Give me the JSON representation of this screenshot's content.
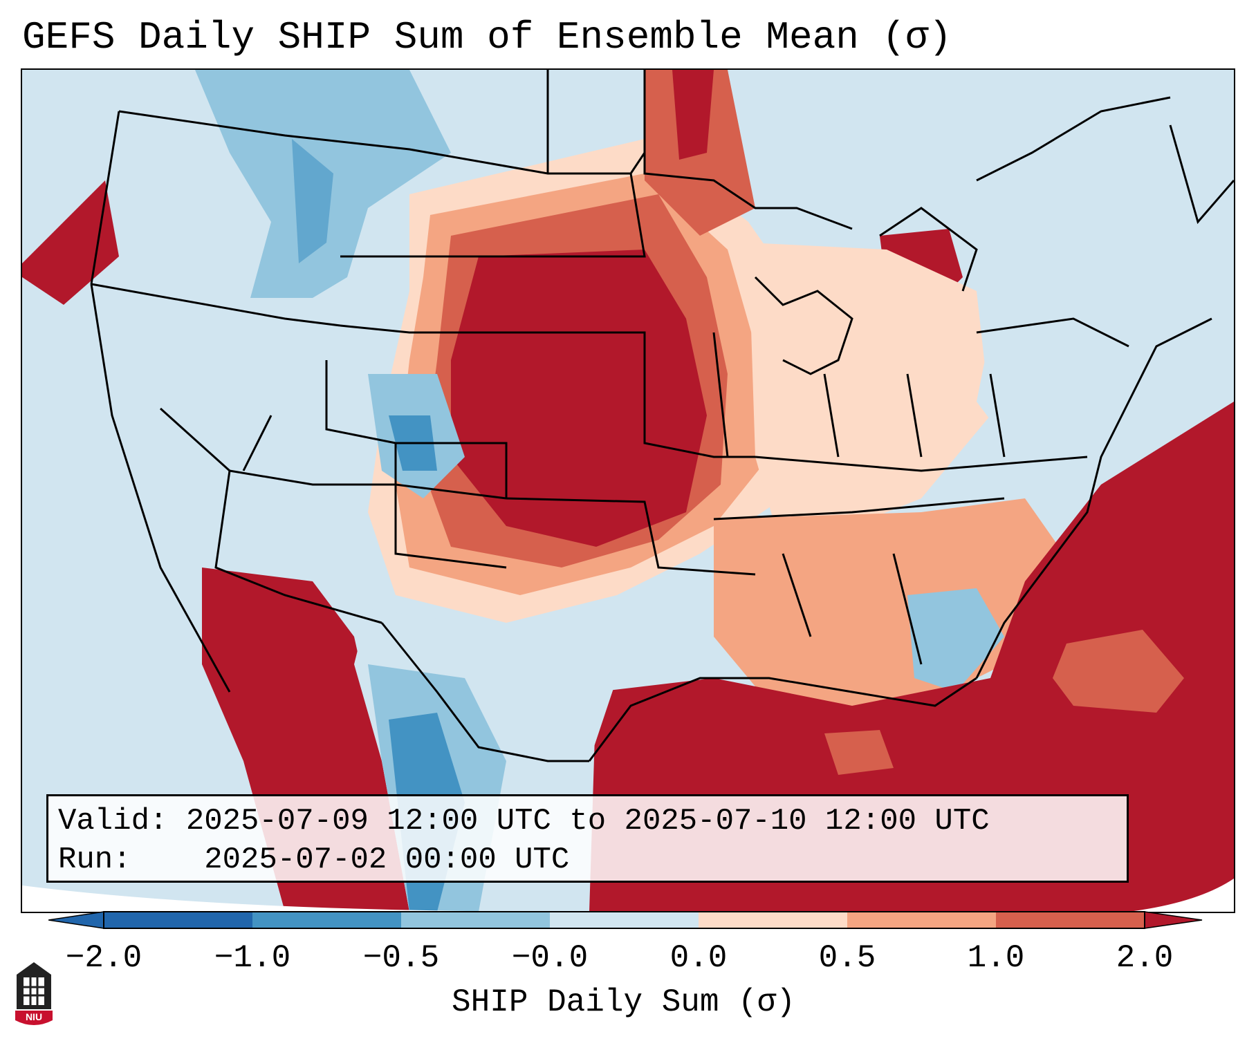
{
  "title": "GEFS Daily SHIP Sum of Ensemble Mean (σ)",
  "valid_label": "Valid:",
  "valid_value": "2025-07-09 12:00 UTC to 2025-07-10 12:00 UTC",
  "run_label": "Run:",
  "run_value": "2025-07-02 00:00 UTC",
  "colorbar": {
    "label": "SHIP Daily Sum (σ)",
    "ticks": [
      "−2.0",
      "−1.0",
      "−0.5",
      "−0.0",
      "0.0",
      "0.5",
      "1.0",
      "2.0"
    ],
    "colors": [
      "#2166ac",
      "#4393c3",
      "#92c5de",
      "#d1e5f0",
      "#fddbc7",
      "#f4a582",
      "#d6604d",
      "#b2182b"
    ]
  },
  "logo_text": "NIU"
}
